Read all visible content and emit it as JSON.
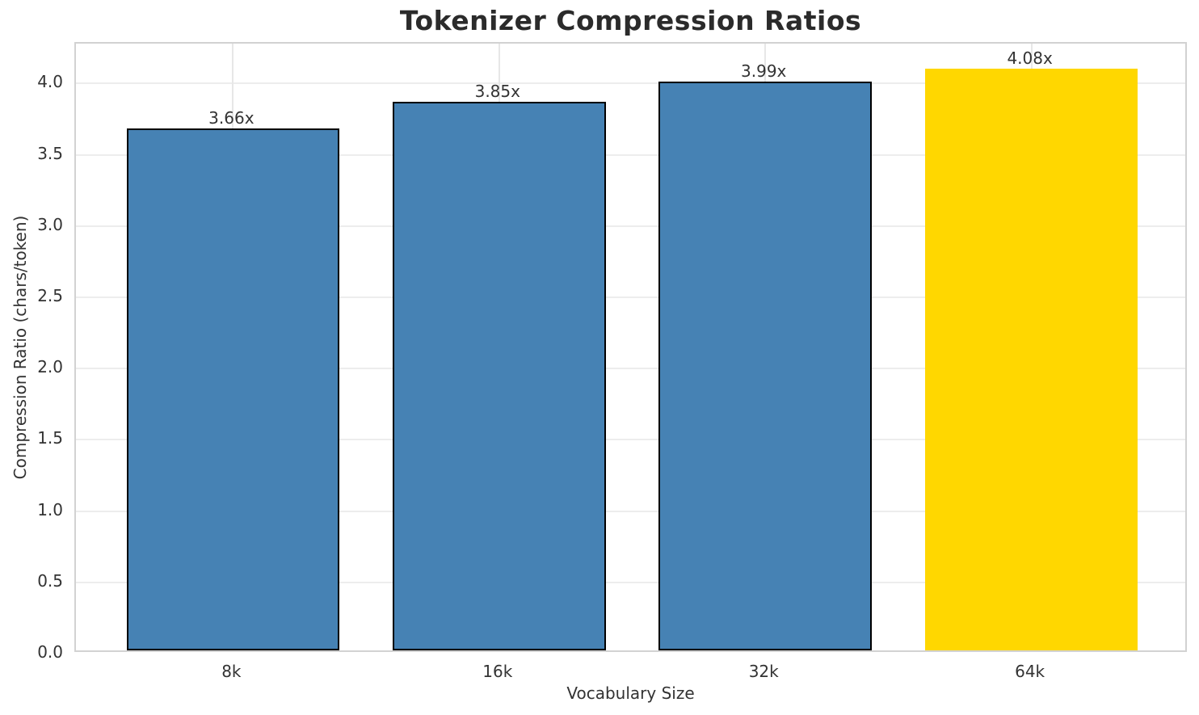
{
  "chart_data": {
    "type": "bar",
    "title": "Tokenizer Compression Ratios",
    "xlabel": "Vocabulary Size",
    "ylabel": "Compression Ratio (chars/token)",
    "categories": [
      "8k",
      "16k",
      "32k",
      "64k"
    ],
    "values": [
      3.66,
      3.85,
      3.99,
      4.08
    ],
    "bar_labels": [
      "3.66x",
      "3.85x",
      "3.99x",
      "4.08x"
    ],
    "bar_colors": [
      "#4682b4",
      "#4682b4",
      "#4682b4",
      "#ffd700"
    ],
    "bar_edge_colors": [
      "#000000",
      "#000000",
      "#000000",
      "none"
    ],
    "base_bar_color": "#4682b4",
    "highlight_bar_color": "#ffd700",
    "ylim": [
      0,
      4.28
    ],
    "yticks": [
      0.0,
      0.5,
      1.0,
      1.5,
      2.0,
      2.5,
      3.0,
      3.5,
      4.0
    ],
    "ytick_labels": [
      "0.0",
      "0.5",
      "1.0",
      "1.5",
      "2.0",
      "2.5",
      "3.0",
      "3.5",
      "4.0"
    ],
    "grid": true,
    "grid_axes": "both",
    "legend_position": "none",
    "background_color": "#ffffff",
    "text_color": "#333333"
  }
}
